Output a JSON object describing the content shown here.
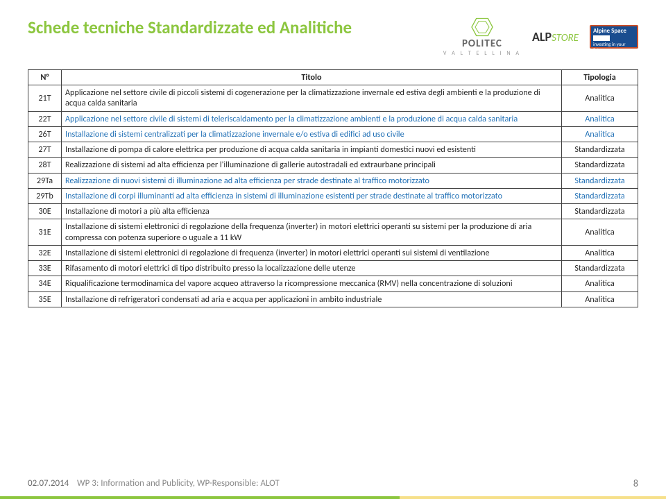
{
  "page_title": "Schede tecniche Standardizzate ed Analitiche",
  "logos": {
    "politec_main": "POLITEC",
    "politec_sub": "V A L T E L L I N A",
    "alp_main": "ALP",
    "alp_store": "STORE",
    "alpine_top": "Alpine Space",
    "alpine_bottom": "investing in your future"
  },
  "table": {
    "headers": {
      "n": "N°",
      "titolo": "Titolo",
      "tipologia": "Tipologia"
    },
    "rows": [
      {
        "n": "21T",
        "titolo": "Applicazione nel settore civile di piccoli sistemi di cogenerazione per la climatizzazione invernale ed estiva degli ambienti e la produzione di acqua calda sanitaria",
        "tipologia": "Analitica",
        "accent": false
      },
      {
        "n": "22T",
        "titolo": "Applicazione nel settore civile di sistemi di teleriscaldamento per la climatizzazione ambienti e la produzione di acqua calda sanitaria",
        "tipologia": "Analitica",
        "accent": true
      },
      {
        "n": "26T",
        "titolo": "Installazione di sistemi centralizzati per la climatizzazione invernale e/o estiva di edifici ad uso civile",
        "tipologia": "Analitica",
        "accent": true
      },
      {
        "n": "27T",
        "titolo": "Installazione di pompa di calore elettrica per produzione di acqua calda sanitaria in impianti domestici nuovi ed esistenti",
        "tipologia": "Standardizzata",
        "accent": false
      },
      {
        "n": "28T",
        "titolo": "Realizzazione di sistemi ad alta efficienza per l'illuminazione di gallerie autostradali ed extraurbane principali",
        "tipologia": "Standardizzata",
        "accent": false
      },
      {
        "n": "29Ta",
        "titolo": "Realizzazione di nuovi sistemi di illuminazione ad alta efficienza per strade destinate al traffico motorizzato",
        "tipologia": "Standardizzata",
        "accent": true
      },
      {
        "n": "29Tb",
        "titolo": "Installazione di corpi illuminanti ad alta efficienza in sistemi di illuminazione esistenti per strade destinate al traffico motorizzato",
        "tipologia": "Standardizzata",
        "accent": true
      },
      {
        "n": "30E",
        "titolo": "Installazione di motori a più alta efficienza",
        "tipologia": "Standardizzata",
        "accent": false
      },
      {
        "n": "31E",
        "titolo": "Installazione di sistemi elettronici di regolazione della frequenza (inverter) in motori elettrici operanti su sistemi per la produzione di aria compressa con potenza superiore o uguale a 11 kW",
        "tipologia": "Analitica",
        "accent": false
      },
      {
        "n": "32E",
        "titolo": "Installazione di sistemi elettronici di regolazione di frequenza (inverter) in motori elettrici operanti sui sistemi di ventilazione",
        "tipologia": "Analitica",
        "accent": false
      },
      {
        "n": "33E",
        "titolo": "Rifasamento di motori elettrici di tipo distribuito presso la localizzazione delle utenze",
        "tipologia": "Standardizzata",
        "accent": false
      },
      {
        "n": "34E",
        "titolo": "Riqualificazione termodinamica del vapore acqueo attraverso la ricompressione meccanica (RMV) nella concentrazione di soluzioni",
        "tipologia": "Analitica",
        "accent": false
      },
      {
        "n": "35E",
        "titolo": "Installazione di refrigeratori condensati ad aria e acqua per applicazioni in ambito industriale",
        "tipologia": "Analitica",
        "accent": false
      }
    ]
  },
  "footer": {
    "date": "02.07.2014",
    "wp": "WP 3: Information and Publicity, WP-Responsible: ALOT",
    "page_number": "8"
  },
  "colors": {
    "accent_green": "#8cc63f",
    "accent_blue": "#1f6fb5",
    "border": "#404040",
    "text": "#262626"
  }
}
